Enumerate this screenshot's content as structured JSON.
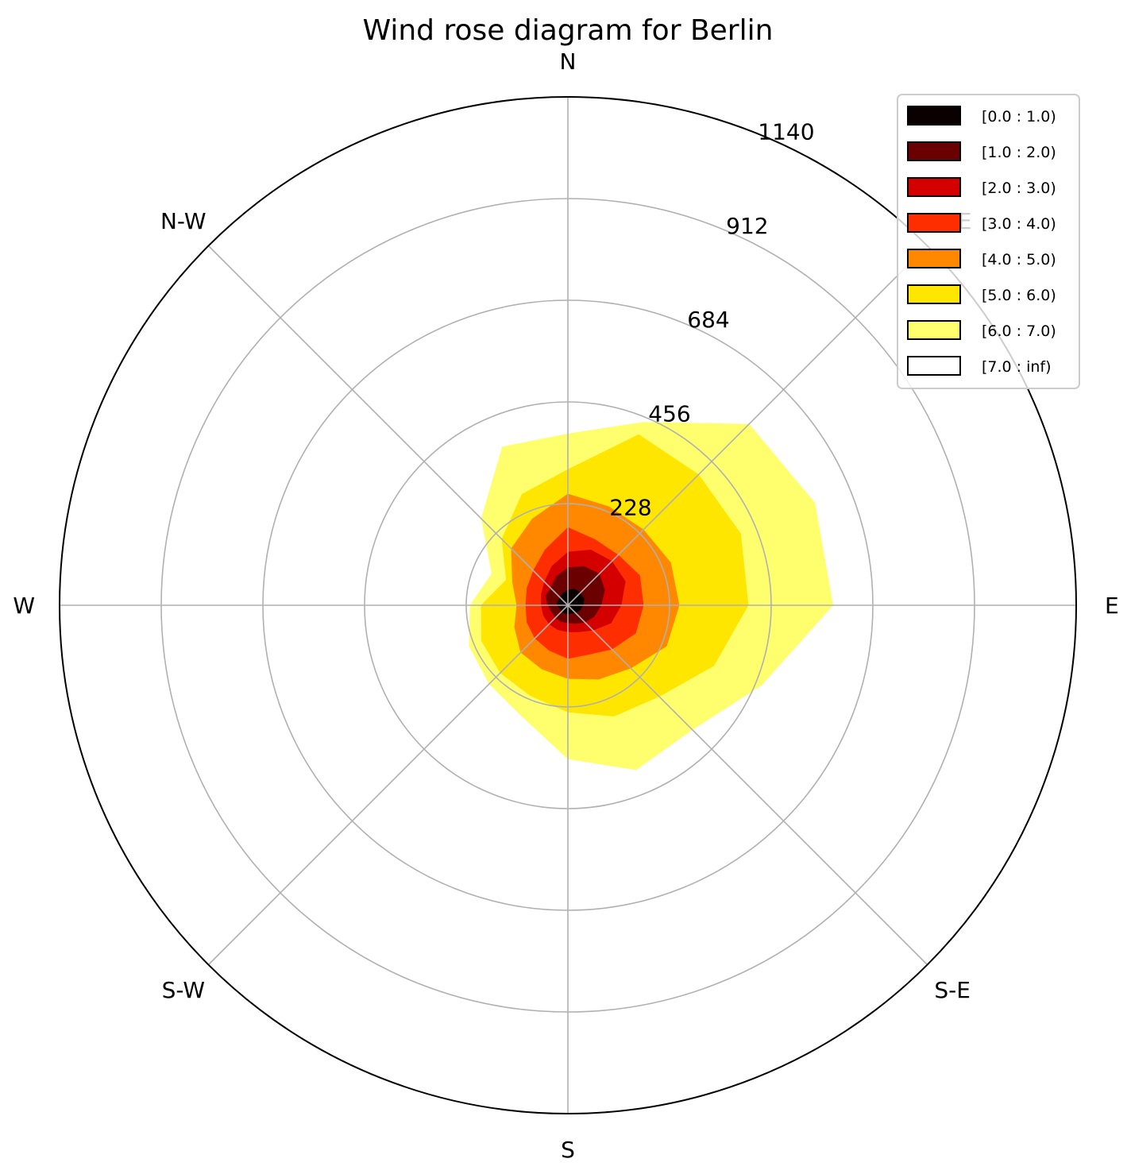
{
  "chart_data": {
    "type": "area",
    "subtype": "wind-rose",
    "title": "Wind rose diagram for Berlin",
    "directions": [
      "N",
      "N-W",
      "W",
      "S-W",
      "S",
      "S-E",
      "E",
      "N-E"
    ],
    "r_ticks": [
      228,
      456,
      684,
      912,
      1140
    ],
    "r_lim": [
      0,
      1140
    ],
    "grid": true,
    "legend_position": "top-right",
    "sectors_deg": [
      0,
      22.5,
      45,
      67.5,
      90,
      112.5,
      135,
      157.5,
      180,
      202.5,
      225,
      247.5,
      270,
      292.5,
      315,
      337.5
    ],
    "series": [
      {
        "name": "[0.0 : 1.0)",
        "color": "#0a0000",
        "values": [
          35,
          30,
          25,
          25,
          25,
          20,
          20,
          20,
          20,
          20,
          25,
          30,
          35,
          40,
          40,
          40
        ]
      },
      {
        "name": "[1.0 : 2.0)",
        "color": "#6b0000",
        "values": [
          85,
          70,
          55,
          55,
          45,
          40,
          40,
          40,
          40,
          45,
          55,
          65,
          75,
          90,
          100,
          95
        ]
      },
      {
        "name": "[2.0 : 3.0)",
        "color": "#d40000",
        "values": [
          120,
          95,
          75,
          65,
          60,
          60,
          60,
          60,
          60,
          65,
          80,
          105,
          120,
          140,
          140,
          135
        ]
      },
      {
        "name": "[3.0 : 4.0)",
        "color": "#ff2e00",
        "values": [
          175,
          135,
          110,
          100,
          95,
          100,
          105,
          110,
          120,
          120,
          140,
          165,
          170,
          175,
          160,
          160
        ]
      },
      {
        "name": "[4.0 : 5.0)",
        "color": "#ff8800",
        "values": [
          250,
          210,
          180,
          135,
          115,
          130,
          150,
          155,
          165,
          180,
          200,
          240,
          250,
          250,
          240,
          240
        ]
      },
      {
        "name": "[5.0 : 6.0)",
        "color": "#ffe600",
        "values": [
          305,
          270,
          210,
          150,
          195,
          210,
          215,
          220,
          240,
          270,
          290,
          355,
          405,
          420,
          415,
          415
        ]
      },
      {
        "name": "[6.0 : 7.0)",
        "color": "#ffff6e",
        "values": [
          385,
          385,
          275,
          185,
          220,
          240,
          250,
          270,
          345,
          400,
          395,
          470,
          595,
          600,
          575,
          445
        ]
      },
      {
        "name": "[7.0 : inf)",
        "color": "#ffffff",
        "values": [
          385,
          385,
          275,
          185,
          220,
          240,
          250,
          270,
          345,
          400,
          395,
          470,
          595,
          600,
          575,
          445
        ]
      }
    ]
  }
}
